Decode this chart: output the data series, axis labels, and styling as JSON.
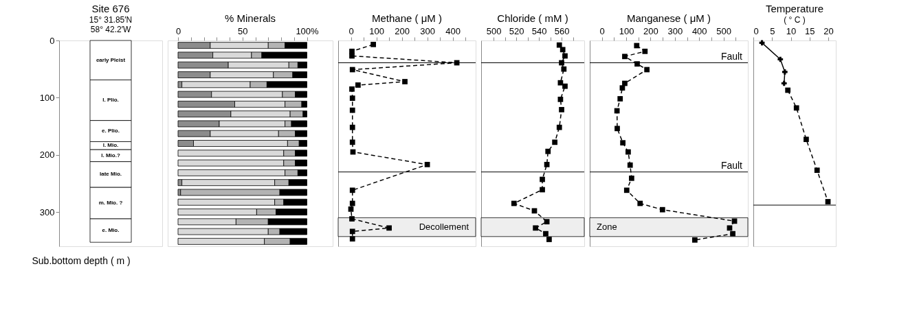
{
  "chart_data": [
    {
      "type": "bar",
      "stacked": true,
      "title": "Site 676",
      "subtitle": "15° 31.85′N",
      "annotations": [
        "58° 42.2′W"
      ],
      "ylabel": "Sub.bottom  depth ( m )",
      "ylim": [
        360,
        0
      ],
      "yticks": [
        0,
        100,
        200,
        300
      ],
      "tick_labels": "y",
      "categories": [
        null
      ],
      "series": [
        {
          "name": "early Pleist",
          "color": "#ffffff",
          "values": [
            69
          ]
        },
        {
          "name": "l. Plio.",
          "color": "#ffffff",
          "values": [
            71
          ]
        },
        {
          "name": "e. Plio.",
          "color": "#ffffff",
          "values": [
            37
          ]
        },
        {
          "name": "l. Mio.",
          "color": "#ffffff",
          "values": [
            14
          ]
        },
        {
          "name": "l. Mio.?",
          "color": "#ffffff",
          "values": [
            21
          ]
        },
        {
          "name": "late Mio.",
          "color": "#ffffff",
          "values": [
            45
          ]
        },
        {
          "name": "m. Mio. ?",
          "color": "#ffffff",
          "values": [
            55
          ]
        },
        {
          "name": "e. Mio.",
          "color": "#ffffff",
          "values": [
            41
          ]
        }
      ]
    },
    {
      "type": "bar",
      "orientation": "horizontal",
      "stacked": true,
      "title": "% Minerals",
      "tick_labels": "x",
      "grid": false,
      "categories": [
        null,
        null,
        null,
        null,
        null,
        null,
        null,
        null,
        null,
        null,
        null,
        null,
        null,
        null,
        null,
        null,
        null,
        null,
        null,
        null,
        null
      ],
      "xlim": [
        -8,
        120
      ],
      "xticks": [
        0,
        {
          "value": 10,
          "label": null
        },
        {
          "value": 20,
          "label": null
        },
        {
          "value": 30,
          "label": null
        },
        {
          "value": 40,
          "label": null
        },
        50,
        {
          "value": 60,
          "label": null
        },
        {
          "value": 70,
          "label": null
        },
        {
          "value": 80,
          "label": null
        },
        {
          "value": 90,
          "label": null
        },
        {
          "value": 100,
          "label": "100%"
        }
      ],
      "series": [
        {
          "color": "#8c8c8c",
          "values": [
            25,
            27,
            39,
            25,
            3,
            26,
            44,
            41,
            32,
            25,
            12,
            0,
            0,
            0,
            3,
            2,
            0,
            0,
            0,
            0,
            0
          ]
        },
        {
          "color": "#d9d9d9",
          "values": [
            45,
            30,
            47,
            49,
            53,
            55,
            39,
            46,
            51,
            53,
            73,
            82,
            82,
            83,
            72,
            0,
            75,
            61,
            45,
            70,
            67
          ]
        },
        {
          "color": "#b3b3b3",
          "values": [
            13,
            8,
            7,
            15,
            13,
            10,
            13,
            10,
            5,
            13,
            9,
            9,
            9,
            10,
            11,
            77,
            7,
            15,
            25,
            9,
            20
          ]
        },
        {
          "color": "#000000",
          "values": [
            17,
            35,
            7,
            11,
            31,
            9,
            4,
            3,
            12,
            9,
            6,
            9,
            9,
            7,
            14,
            21,
            18,
            24,
            30,
            21,
            13
          ]
        }
      ]
    },
    {
      "type": "line",
      "orientation": "horizontal",
      "title": "Methane ( μM )",
      "tick_labels": "x",
      "grid": false,
      "marker": "square",
      "line_style": "dashed",
      "xlim": [
        -50,
        490
      ],
      "xticks": [
        0,
        {
          "value": 50,
          "label": null
        },
        100,
        {
          "value": 150,
          "label": null
        },
        200,
        {
          "value": 250,
          "label": null
        },
        300,
        {
          "value": 350,
          "label": null
        },
        400,
        {
          "value": 450,
          "label": null
        }
      ],
      "ylim": [
        360,
        0
      ],
      "series": [
        {
          "color": "#000000",
          "x": [
            7,
            19,
            27,
            39,
            51,
            72,
            78,
            85,
            101,
            122,
            152,
            178,
            195,
            217,
            262,
            285,
            295,
            312,
            328,
            334,
            347
          ],
          "values": [
            88,
            4,
            4,
            416,
            6,
            212,
            28,
            4,
            6,
            6,
            6,
            6,
            8,
            300,
            6,
            6,
            0,
            4,
            150,
            6,
            6
          ]
        }
      ],
      "ref_lines": [
        {
          "axis": "y",
          "value": 39,
          "color": "#000000"
        },
        {
          "axis": "y",
          "value": 230,
          "color": "#000000"
        }
      ],
      "bands": [
        {
          "axis": "y",
          "from": 310,
          "to": 343,
          "label": "Decollement",
          "color": "#eeeeee"
        }
      ]
    },
    {
      "type": "line",
      "orientation": "horizontal",
      "title": "Chloride ( mM )",
      "tick_labels": "x",
      "grid": false,
      "marker": "square",
      "line_style": "dashed",
      "xlim": [
        489,
        580
      ],
      "xticks": [
        500,
        {
          "value": 510,
          "label": null
        },
        520,
        {
          "value": 530,
          "label": null
        },
        540,
        {
          "value": 550,
          "label": null
        },
        560,
        {
          "value": 570,
          "label": null
        }
      ],
      "ylim": [
        360,
        0
      ],
      "series": [
        {
          "color": "#000000",
          "x": [
            8,
            16,
            27,
            39,
            50,
            74,
            80,
            103,
            121,
            152,
            178,
            194,
            217,
            243,
            261,
            285,
            298,
            317,
            328,
            338,
            348
          ],
          "values": [
            558,
            561,
            563,
            560,
            562,
            559,
            563,
            559,
            560,
            558,
            554,
            548,
            547,
            543,
            543,
            518,
            536,
            547,
            537,
            546,
            549
          ]
        }
      ],
      "ref_lines": [
        {
          "axis": "y",
          "value": 39,
          "color": "#000000"
        },
        {
          "axis": "y",
          "value": 230,
          "color": "#000000"
        }
      ],
      "bands": [
        {
          "axis": "y",
          "from": 310,
          "to": 343,
          "color": "#eeeeee"
        }
      ]
    },
    {
      "type": "line",
      "orientation": "horizontal",
      "title": "Manganese ( μM )",
      "tick_labels": "x",
      "grid": false,
      "marker": "square",
      "line_style": "dashed",
      "xlim": [
        -50,
        600
      ],
      "xticks": [
        0,
        {
          "value": 50,
          "label": null
        },
        100,
        {
          "value": 150,
          "label": null
        },
        200,
        {
          "value": 250,
          "label": null
        },
        300,
        {
          "value": 350,
          "label": null
        },
        400,
        {
          "value": 450,
          "label": null
        },
        500,
        {
          "value": 550,
          "label": null
        }
      ],
      "ylim": [
        360,
        0
      ],
      "series": [
        {
          "color": "#000000",
          "x": [
            9,
            19,
            28,
            41,
            51,
            75,
            83,
            102,
            123,
            154,
            179,
            195,
            218,
            241,
            262,
            285,
            296,
            316,
            328,
            338,
            349
          ],
          "values": [
            143,
            177,
            94,
            145,
            185,
            94,
            84,
            75,
            62,
            63,
            86,
            108,
            116,
            122,
            102,
            157,
            249,
            545,
            525,
            538,
            382
          ]
        }
      ],
      "ref_lines": [
        {
          "axis": "y",
          "value": 39,
          "label": "Fault",
          "color": "#000000"
        },
        {
          "axis": "y",
          "value": 230,
          "label": "Fault",
          "color": "#000000"
        }
      ],
      "bands": [
        {
          "axis": "y",
          "from": 310,
          "to": 343,
          "label": "Zone",
          "color": "#eeeeee"
        }
      ]
    },
    {
      "type": "line",
      "orientation": "horizontal",
      "title": "Temperature",
      "subtitle": "( ° C )",
      "tick_labels": "x",
      "grid": false,
      "xlim": [
        0,
        22
      ],
      "xticks": [
        0,
        5,
        10,
        15,
        20
      ],
      "ylim": [
        360,
        0
      ],
      "series": [
        {
          "color": "#000000",
          "line_style": "solid",
          "marker": "cross",
          "x": [
            4,
            33,
            55,
            75
          ],
          "values": [
            2.3,
            7.2,
            8.4,
            8.2
          ]
        },
        {
          "color": "#000000",
          "line_style": "dashed",
          "marker": "square",
          "x": [
            87,
            118,
            173,
            227,
            282
          ],
          "values": [
            9.2,
            11.5,
            14.1,
            17.0,
            19.9
          ]
        }
      ],
      "ref_lines": [
        {
          "axis": "y",
          "value": 288,
          "color": "#000000"
        }
      ]
    }
  ]
}
